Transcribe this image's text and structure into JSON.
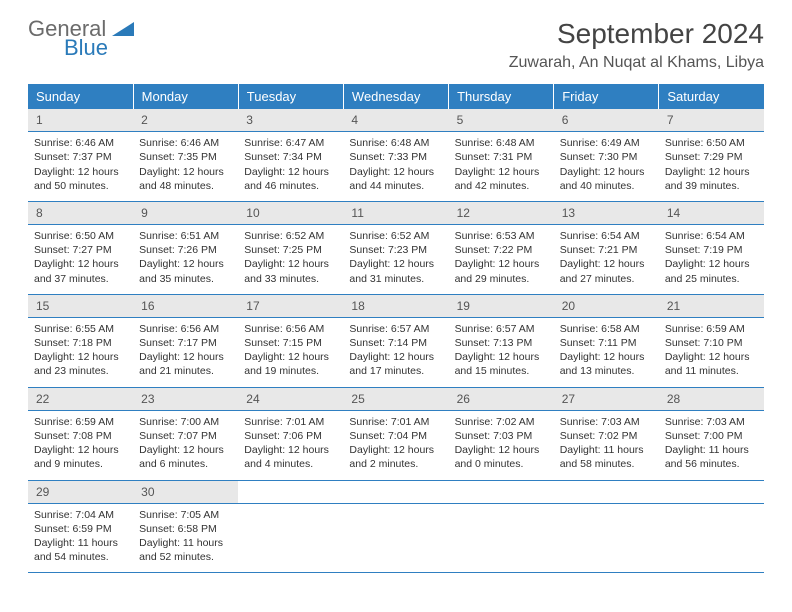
{
  "logo": {
    "word1": "General",
    "word2": "Blue"
  },
  "title": "September 2024",
  "location": "Zuwarah, An Nuqat al Khams, Libya",
  "colors": {
    "header_bg": "#2f7fc1",
    "header_text": "#ffffff",
    "daynum_bg": "#e8e8e8",
    "rule": "#2f7fc1",
    "logo_gray": "#6b6b6b",
    "logo_blue": "#2a7ab9"
  },
  "weekdays": [
    "Sunday",
    "Monday",
    "Tuesday",
    "Wednesday",
    "Thursday",
    "Friday",
    "Saturday"
  ],
  "weeks": [
    [
      {
        "n": "1",
        "sr": "Sunrise: 6:46 AM",
        "ss": "Sunset: 7:37 PM",
        "dl": "Daylight: 12 hours and 50 minutes."
      },
      {
        "n": "2",
        "sr": "Sunrise: 6:46 AM",
        "ss": "Sunset: 7:35 PM",
        "dl": "Daylight: 12 hours and 48 minutes."
      },
      {
        "n": "3",
        "sr": "Sunrise: 6:47 AM",
        "ss": "Sunset: 7:34 PM",
        "dl": "Daylight: 12 hours and 46 minutes."
      },
      {
        "n": "4",
        "sr": "Sunrise: 6:48 AM",
        "ss": "Sunset: 7:33 PM",
        "dl": "Daylight: 12 hours and 44 minutes."
      },
      {
        "n": "5",
        "sr": "Sunrise: 6:48 AM",
        "ss": "Sunset: 7:31 PM",
        "dl": "Daylight: 12 hours and 42 minutes."
      },
      {
        "n": "6",
        "sr": "Sunrise: 6:49 AM",
        "ss": "Sunset: 7:30 PM",
        "dl": "Daylight: 12 hours and 40 minutes."
      },
      {
        "n": "7",
        "sr": "Sunrise: 6:50 AM",
        "ss": "Sunset: 7:29 PM",
        "dl": "Daylight: 12 hours and 39 minutes."
      }
    ],
    [
      {
        "n": "8",
        "sr": "Sunrise: 6:50 AM",
        "ss": "Sunset: 7:27 PM",
        "dl": "Daylight: 12 hours and 37 minutes."
      },
      {
        "n": "9",
        "sr": "Sunrise: 6:51 AM",
        "ss": "Sunset: 7:26 PM",
        "dl": "Daylight: 12 hours and 35 minutes."
      },
      {
        "n": "10",
        "sr": "Sunrise: 6:52 AM",
        "ss": "Sunset: 7:25 PM",
        "dl": "Daylight: 12 hours and 33 minutes."
      },
      {
        "n": "11",
        "sr": "Sunrise: 6:52 AM",
        "ss": "Sunset: 7:23 PM",
        "dl": "Daylight: 12 hours and 31 minutes."
      },
      {
        "n": "12",
        "sr": "Sunrise: 6:53 AM",
        "ss": "Sunset: 7:22 PM",
        "dl": "Daylight: 12 hours and 29 minutes."
      },
      {
        "n": "13",
        "sr": "Sunrise: 6:54 AM",
        "ss": "Sunset: 7:21 PM",
        "dl": "Daylight: 12 hours and 27 minutes."
      },
      {
        "n": "14",
        "sr": "Sunrise: 6:54 AM",
        "ss": "Sunset: 7:19 PM",
        "dl": "Daylight: 12 hours and 25 minutes."
      }
    ],
    [
      {
        "n": "15",
        "sr": "Sunrise: 6:55 AM",
        "ss": "Sunset: 7:18 PM",
        "dl": "Daylight: 12 hours and 23 minutes."
      },
      {
        "n": "16",
        "sr": "Sunrise: 6:56 AM",
        "ss": "Sunset: 7:17 PM",
        "dl": "Daylight: 12 hours and 21 minutes."
      },
      {
        "n": "17",
        "sr": "Sunrise: 6:56 AM",
        "ss": "Sunset: 7:15 PM",
        "dl": "Daylight: 12 hours and 19 minutes."
      },
      {
        "n": "18",
        "sr": "Sunrise: 6:57 AM",
        "ss": "Sunset: 7:14 PM",
        "dl": "Daylight: 12 hours and 17 minutes."
      },
      {
        "n": "19",
        "sr": "Sunrise: 6:57 AM",
        "ss": "Sunset: 7:13 PM",
        "dl": "Daylight: 12 hours and 15 minutes."
      },
      {
        "n": "20",
        "sr": "Sunrise: 6:58 AM",
        "ss": "Sunset: 7:11 PM",
        "dl": "Daylight: 12 hours and 13 minutes."
      },
      {
        "n": "21",
        "sr": "Sunrise: 6:59 AM",
        "ss": "Sunset: 7:10 PM",
        "dl": "Daylight: 12 hours and 11 minutes."
      }
    ],
    [
      {
        "n": "22",
        "sr": "Sunrise: 6:59 AM",
        "ss": "Sunset: 7:08 PM",
        "dl": "Daylight: 12 hours and 9 minutes."
      },
      {
        "n": "23",
        "sr": "Sunrise: 7:00 AM",
        "ss": "Sunset: 7:07 PM",
        "dl": "Daylight: 12 hours and 6 minutes."
      },
      {
        "n": "24",
        "sr": "Sunrise: 7:01 AM",
        "ss": "Sunset: 7:06 PM",
        "dl": "Daylight: 12 hours and 4 minutes."
      },
      {
        "n": "25",
        "sr": "Sunrise: 7:01 AM",
        "ss": "Sunset: 7:04 PM",
        "dl": "Daylight: 12 hours and 2 minutes."
      },
      {
        "n": "26",
        "sr": "Sunrise: 7:02 AM",
        "ss": "Sunset: 7:03 PM",
        "dl": "Daylight: 12 hours and 0 minutes."
      },
      {
        "n": "27",
        "sr": "Sunrise: 7:03 AM",
        "ss": "Sunset: 7:02 PM",
        "dl": "Daylight: 11 hours and 58 minutes."
      },
      {
        "n": "28",
        "sr": "Sunrise: 7:03 AM",
        "ss": "Sunset: 7:00 PM",
        "dl": "Daylight: 11 hours and 56 minutes."
      }
    ],
    [
      {
        "n": "29",
        "sr": "Sunrise: 7:04 AM",
        "ss": "Sunset: 6:59 PM",
        "dl": "Daylight: 11 hours and 54 minutes."
      },
      {
        "n": "30",
        "sr": "Sunrise: 7:05 AM",
        "ss": "Sunset: 6:58 PM",
        "dl": "Daylight: 11 hours and 52 minutes."
      },
      null,
      null,
      null,
      null,
      null
    ]
  ]
}
